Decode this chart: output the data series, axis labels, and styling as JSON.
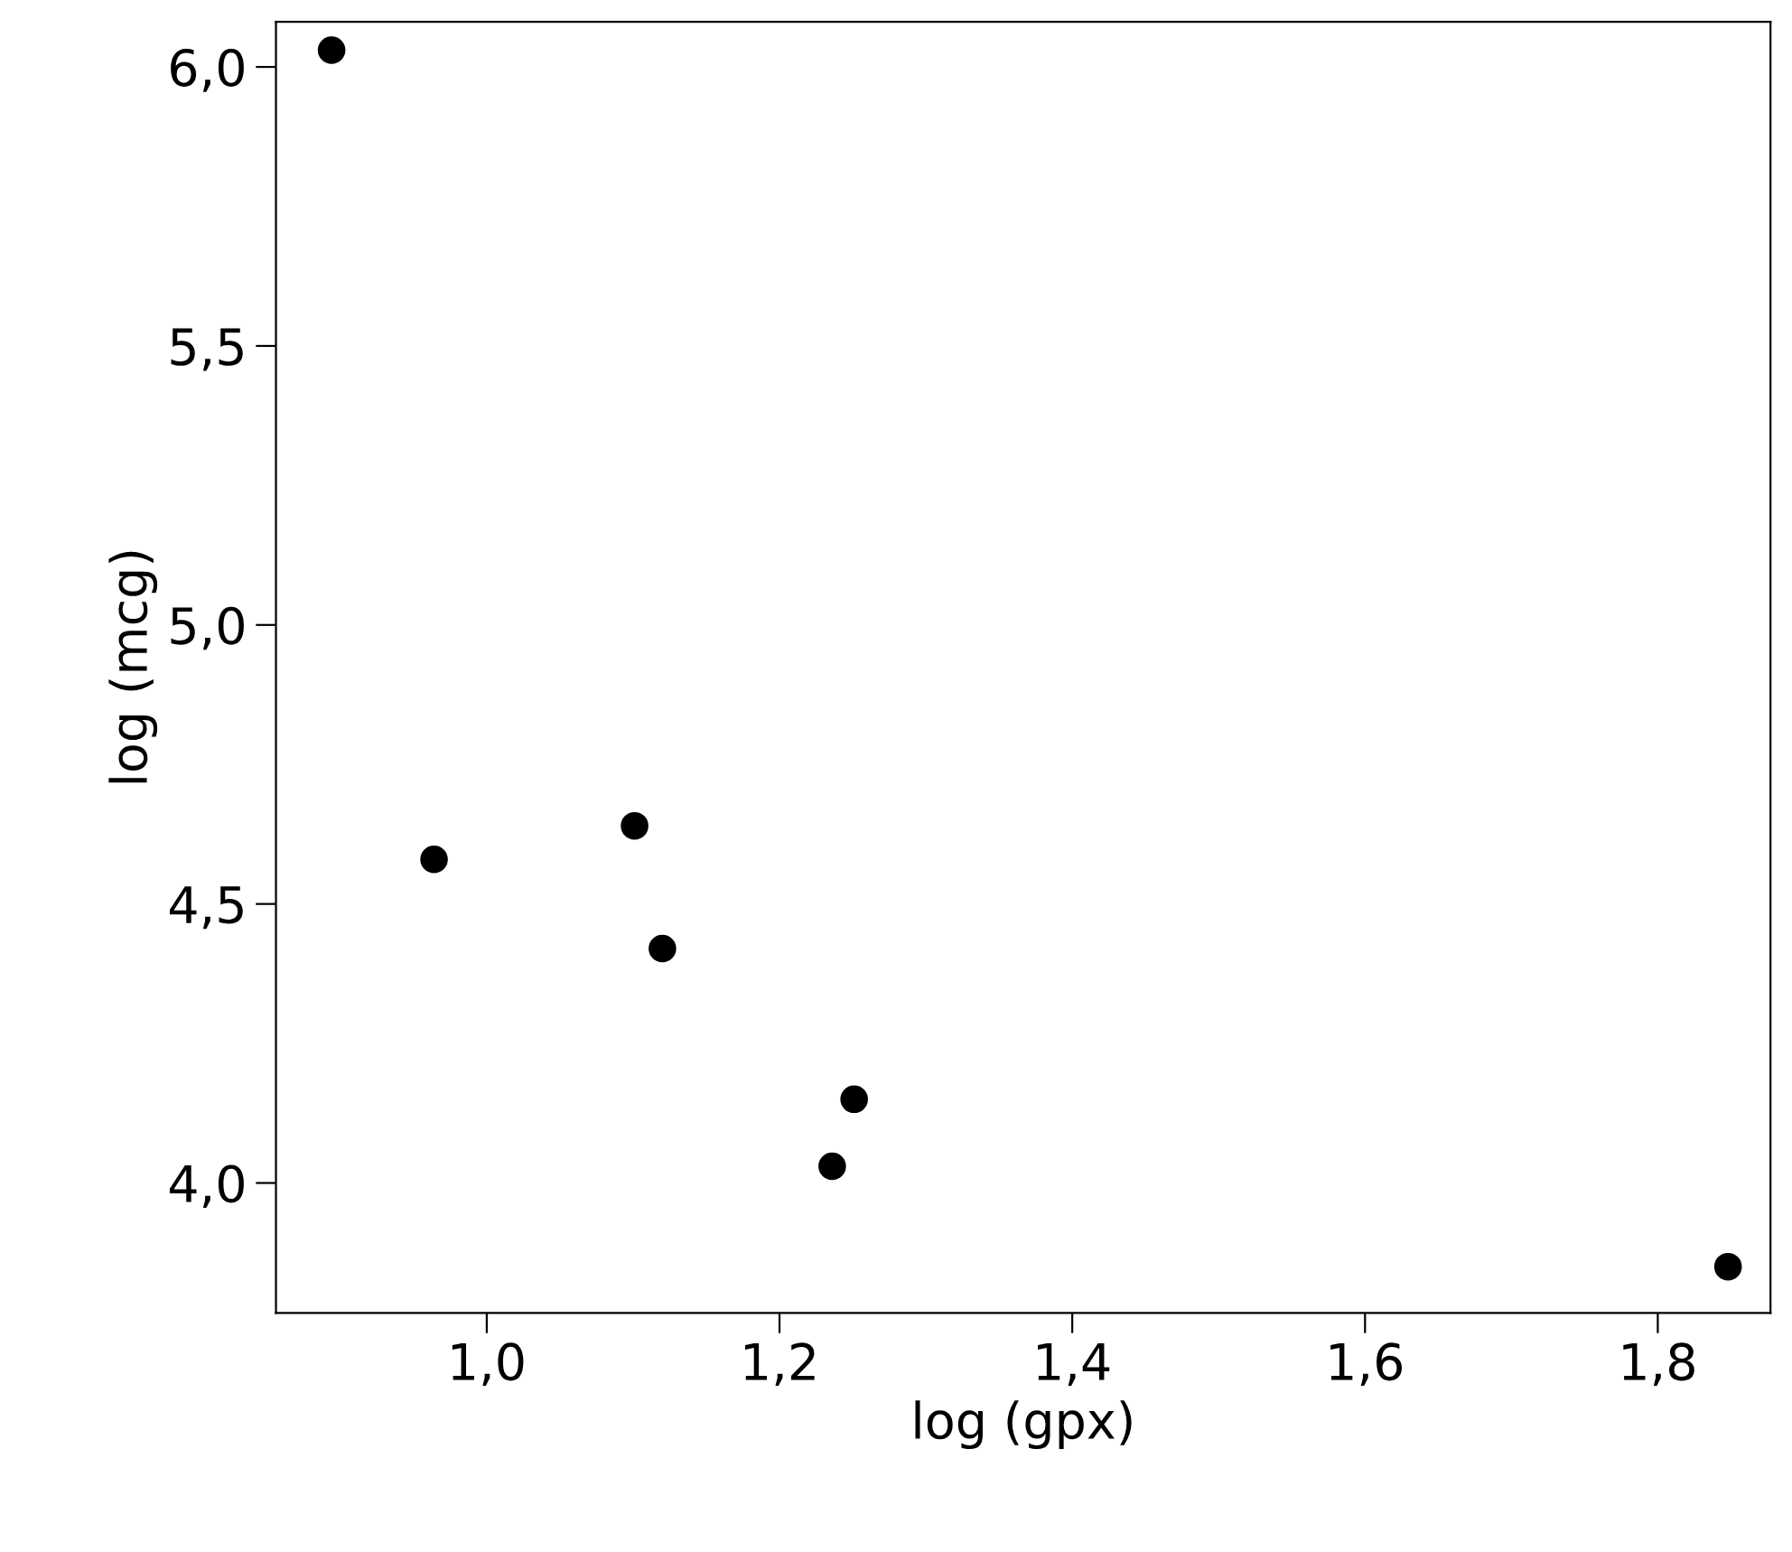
{
  "chart_data": {
    "type": "scatter",
    "xlabel": "log (gpx)",
    "ylabel": "log (mcg)",
    "x": [
      0.894,
      0.964,
      1.101,
      1.12,
      1.251,
      1.236,
      1.848
    ],
    "series": [
      {
        "color": "#000000",
        "values": [
          6.03,
          4.58,
          4.64,
          4.42,
          4.15,
          4.03,
          3.85
        ]
      }
    ],
    "xlim": [
      0.856,
      1.877
    ],
    "ylim": [
      3.767,
      6.081
    ],
    "xticks": [
      {
        "value": 1.0,
        "label": "1,0"
      },
      {
        "value": 1.2,
        "label": "1,2"
      },
      {
        "value": 1.4,
        "label": "1,4"
      },
      {
        "value": 1.6,
        "label": "1,6"
      },
      {
        "value": 1.8,
        "label": "1,8"
      }
    ],
    "yticks": [
      {
        "value": 4.0,
        "label": "4,0"
      },
      {
        "value": 4.5,
        "label": "4,5"
      },
      {
        "value": 5.0,
        "label": "5,0"
      },
      {
        "value": 5.5,
        "label": "5,5"
      },
      {
        "value": 6.0,
        "label": "6,0"
      }
    ],
    "marker": "circle",
    "grid": false
  }
}
